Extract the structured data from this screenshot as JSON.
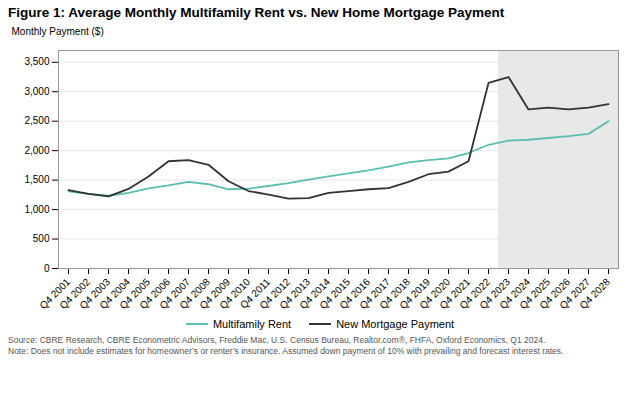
{
  "chart_data": {
    "type": "line",
    "title": "Figure 1: Average Monthly Multifamily Rent vs. New Home Mortgage Payment",
    "y_label": "Monthly Payment ($)",
    "categories": [
      "Q4 2001",
      "Q4 2002",
      "Q4 2003",
      "Q4 2004",
      "Q4 2005",
      "Q4 2006",
      "Q4 2007",
      "Q4 2008",
      "Q4 2009",
      "Q4 2010",
      "Q4 2011",
      "Q4 2012",
      "Q4 2013",
      "Q4 2014",
      "Q4 2015",
      "Q4 2016",
      "Q4 2017",
      "Q4 2018",
      "Q4 2019",
      "Q4 2020",
      "Q4 2021",
      "Q4 2022",
      "Q4 2023",
      "Q4 2024",
      "Q4 2025",
      "Q4 2026",
      "Q4 2027",
      "Q4 2028"
    ],
    "series": [
      {
        "name": "Multifamily Rent",
        "color": "#5bbfad",
        "values": [
          1310,
          1265,
          1235,
          1285,
          1360,
          1410,
          1470,
          1430,
          1345,
          1355,
          1400,
          1450,
          1510,
          1565,
          1615,
          1665,
          1730,
          1800,
          1840,
          1870,
          1960,
          2100,
          2170,
          2185,
          2215,
          2245,
          2285,
          2500
        ]
      },
      {
        "name": "New Mortgage Payment",
        "color": "#333333",
        "values": [
          1330,
          1265,
          1225,
          1350,
          1560,
          1820,
          1840,
          1760,
          1480,
          1315,
          1255,
          1185,
          1195,
          1285,
          1315,
          1345,
          1365,
          1470,
          1600,
          1645,
          1820,
          3150,
          3250,
          2700,
          2730,
          2700,
          2730,
          2790
        ]
      }
    ],
    "shaded_region": {
      "from": "Q4 2023",
      "color": "#e8e8e8"
    },
    "ylim": [
      0,
      3700
    ],
    "yticks": [
      0,
      500,
      {
        "value": 1000,
        "label": "1,000"
      },
      {
        "value": 1500,
        "label": "1,500"
      },
      {
        "value": 2000,
        "label": "2,000"
      },
      {
        "value": 2500,
        "label": "2,500"
      },
      {
        "value": 3000,
        "label": "3,000"
      },
      {
        "value": 3500,
        "label": "3,500"
      }
    ],
    "grid": true,
    "legend": "bottom",
    "source": "Source: CBRE Research, CBRE Econometric Advisors, Freddie Mac, U.S. Census Bureau, Realtor.com®, FHFA, Oxford Economics, Q1 2024.",
    "note": "Note: Does not include estimates for homeowner’s or renter’s insurance. Assumed down payment of 10% with prevailing and forecast interest rates."
  }
}
